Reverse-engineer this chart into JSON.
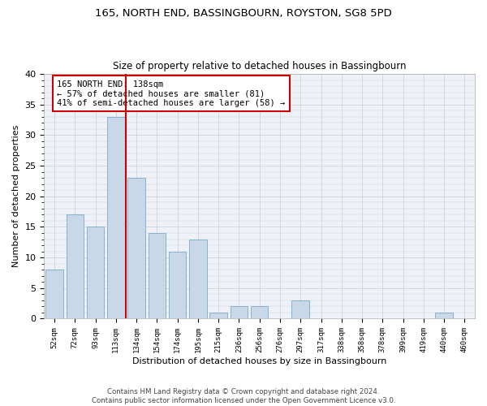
{
  "title": "165, NORTH END, BASSINGBOURN, ROYSTON, SG8 5PD",
  "subtitle": "Size of property relative to detached houses in Bassingbourn",
  "xlabel": "Distribution of detached houses by size in Bassingbourn",
  "ylabel": "Number of detached properties",
  "bar_color": "#c8d8e8",
  "bar_edge_color": "#7aaac8",
  "grid_color": "#cccccc",
  "background_color": "#eef2f8",
  "categories": [
    "52sqm",
    "72sqm",
    "93sqm",
    "113sqm",
    "134sqm",
    "154sqm",
    "174sqm",
    "195sqm",
    "215sqm",
    "236sqm",
    "256sqm",
    "276sqm",
    "297sqm",
    "317sqm",
    "338sqm",
    "358sqm",
    "378sqm",
    "399sqm",
    "419sqm",
    "440sqm",
    "460sqm"
  ],
  "values": [
    8,
    17,
    15,
    33,
    23,
    14,
    11,
    13,
    1,
    2,
    2,
    0,
    3,
    0,
    0,
    0,
    0,
    0,
    0,
    1,
    0
  ],
  "property_label": "165 NORTH END: 138sqm",
  "pct_smaller": 57,
  "n_smaller": 81,
  "pct_larger_semi": 41,
  "n_larger_semi": 58,
  "vline_x": 3.5,
  "annotation_box_color": "#cc0000",
  "ylim": [
    0,
    40
  ],
  "yticks": [
    0,
    5,
    10,
    15,
    20,
    25,
    30,
    35,
    40
  ],
  "footer_line1": "Contains HM Land Registry data © Crown copyright and database right 2024.",
  "footer_line2": "Contains public sector information licensed under the Open Government Licence v3.0."
}
